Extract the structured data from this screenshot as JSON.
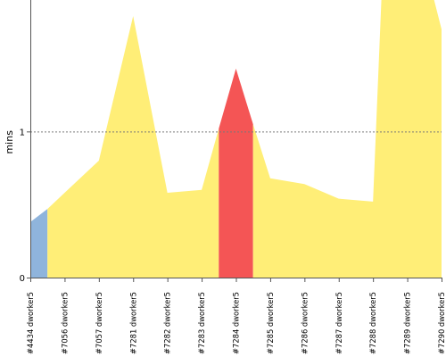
{
  "chart_data": {
    "type": "area",
    "title": "",
    "xlabel": "",
    "ylabel": "mins",
    "ylim": [
      0,
      1.9
    ],
    "yticks": [
      0,
      1
    ],
    "grid": "dashed line at y = 1",
    "categories": [
      "#4434 dworker5",
      "#7056 dworker5",
      "#7057 dworker5",
      "#7281 dworker5",
      "#7282 dworker5",
      "#7283 dworker5",
      "#7284 dworker5",
      "#7285 dworker5",
      "#7286 dworker5",
      "#7287 dworker5",
      "#7288 dworker5",
      "#7289 dworker5",
      "#7290 dworker5"
    ],
    "points": [
      {
        "t": 0.0,
        "y": 0.38,
        "c": 0
      },
      {
        "t": 0.5,
        "y": 0.47,
        "c": 0
      },
      {
        "t": 1.0,
        "y": 0.58,
        "c": 1
      },
      {
        "t": 2.0,
        "y": 0.8,
        "c": 2
      },
      {
        "t": 3.0,
        "y": 1.79,
        "c": 3
      },
      {
        "t": 4.0,
        "y": 0.58,
        "c": 4
      },
      {
        "t": 5.0,
        "y": 0.6,
        "c": 5
      },
      {
        "t": 5.5,
        "y": 1.02,
        "c": 6
      },
      {
        "t": 6.0,
        "y": 1.43,
        "c": 6
      },
      {
        "t": 6.5,
        "y": 1.05,
        "c": 6
      },
      {
        "t": 7.0,
        "y": 0.68,
        "c": 7
      },
      {
        "t": 8.0,
        "y": 0.64,
        "c": 8
      },
      {
        "t": 9.0,
        "y": 0.54,
        "c": 9
      },
      {
        "t": 10.0,
        "y": 0.52,
        "c": 10
      },
      {
        "t": 10.25,
        "y": 1.95,
        "c": 11
      },
      {
        "t": 11.75,
        "y": 1.95,
        "c": 11
      },
      {
        "t": 12.0,
        "y": 1.7,
        "c": 12
      }
    ],
    "segments": [
      {
        "from": 0.0,
        "to": 0.5,
        "color": "#8fb4dc"
      },
      {
        "from": 0.5,
        "to": 5.5,
        "color": "#ffee77"
      },
      {
        "from": 5.5,
        "to": 6.5,
        "color": "#f45555"
      },
      {
        "from": 6.5,
        "to": 12.0,
        "color": "#ffee77"
      }
    ]
  }
}
